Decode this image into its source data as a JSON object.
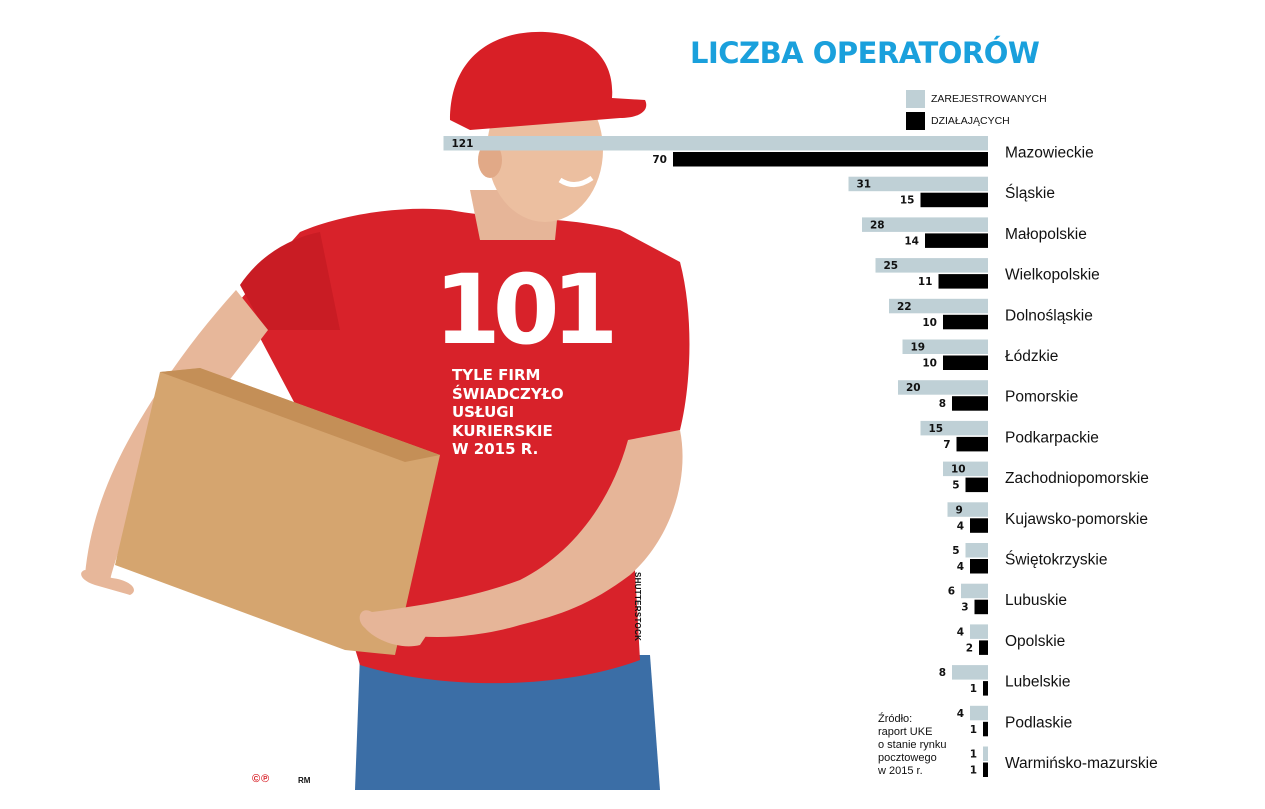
{
  "title": "LICZBA OPERATORÓW",
  "legend": [
    {
      "label": "ZAREJESTROWANYCH",
      "color": "#bfd0d6"
    },
    {
      "label": "DZIAŁAJĄCYCH",
      "color": "#000000"
    }
  ],
  "headline": {
    "number": "101",
    "caption": "TYLE FIRM\nŚWIADCZYŁO\nUSŁUGI\nKURIERSKIE\nW 2015 R."
  },
  "photo_credit": "SHUTTERSTOCK",
  "source": "Źródło:\nraport UKE\no stanie rynku\npocztowego\nw 2015 r.",
  "footer": {
    "author": "RM",
    "copyright": "©℗"
  },
  "colors": {
    "title": "#1aa0dc",
    "registered": "#bfd0d6",
    "active": "#000000",
    "shirt": "#d8222a",
    "cap": "#d81f26",
    "box": "#d5a56f",
    "jeans": "#3b6ea6"
  },
  "chart_data": {
    "type": "bar",
    "orientation": "horizontal",
    "title": "LICZBA OPERATORÓW",
    "categories": [
      "Mazowieckie",
      "Śląskie",
      "Małopolskie",
      "Wielkopolskie",
      "Dolnośląskie",
      "Łódzkie",
      "Pomorskie",
      "Podkarpackie",
      "Zachodniopomorskie",
      "Kujawsko-pomorskie",
      "Świętokrzyskie",
      "Lubuskie",
      "Opolskie",
      "Lubelskie",
      "Podlaskie",
      "Warmińsko-mazurskie"
    ],
    "series": [
      {
        "name": "ZAREJESTROWANYCH",
        "values": [
          121,
          31,
          28,
          25,
          22,
          19,
          20,
          15,
          10,
          9,
          5,
          6,
          4,
          8,
          4,
          1
        ]
      },
      {
        "name": "DZIAŁAJĄCYCH",
        "values": [
          70,
          15,
          14,
          11,
          10,
          10,
          8,
          7,
          5,
          4,
          4,
          3,
          2,
          1,
          1,
          1
        ]
      }
    ],
    "legend_position": "top",
    "grid": false
  }
}
